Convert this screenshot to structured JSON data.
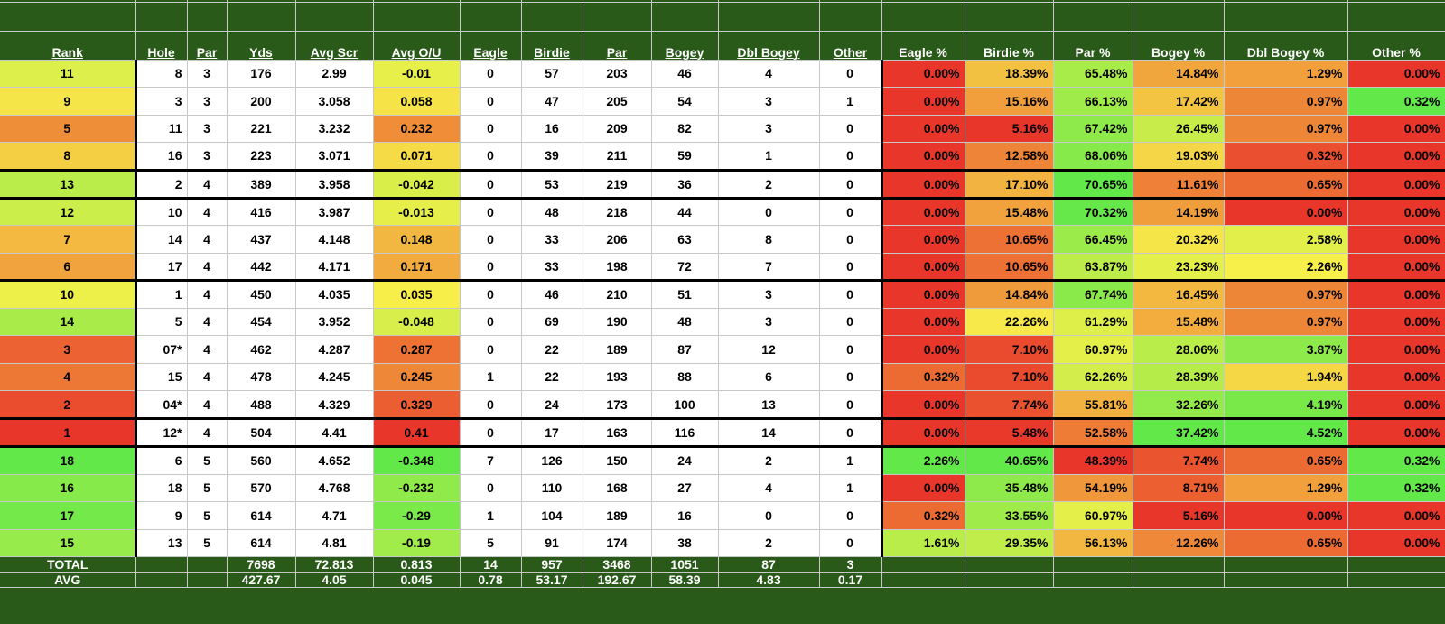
{
  "headers": {
    "rank": "Rank",
    "hole": "Hole",
    "par": "Par",
    "yds": "Yds",
    "avg_scr": "Avg Scr",
    "avg_ou": "Avg O/U",
    "eagle": "Eagle",
    "birdie": "Birdie",
    "par_count": "Par",
    "bogey": "Bogey",
    "dbl_bogey": "Dbl Bogey",
    "other": "Other",
    "eagle_pct": "Eagle %",
    "birdie_pct": "Birdie %",
    "par_pct": "Par %",
    "bogey_pct": "Bogey %",
    "dbl_bogey_pct": "Dbl Bogey %",
    "other_pct": "Other %"
  },
  "rows": [
    {
      "rank": "11",
      "hole": "8",
      "par": "3",
      "yds": "176",
      "avg_scr": "2.99",
      "avg_ou": "-0.01",
      "eagle": "0",
      "birdie": "57",
      "par_count": "203",
      "bogey": "46",
      "dbl_bogey": "4",
      "other": "0",
      "eagle_pct": "0.00%",
      "birdie_pct": "18.39%",
      "par_pct": "65.48%",
      "bogey_pct": "14.84%",
      "dbl_bogey_pct": "1.29%",
      "other_pct": "0.00%"
    },
    {
      "rank": "9",
      "hole": "3",
      "par": "3",
      "yds": "200",
      "avg_scr": "3.058",
      "avg_ou": "0.058",
      "eagle": "0",
      "birdie": "47",
      "par_count": "205",
      "bogey": "54",
      "dbl_bogey": "3",
      "other": "1",
      "eagle_pct": "0.00%",
      "birdie_pct": "15.16%",
      "par_pct": "66.13%",
      "bogey_pct": "17.42%",
      "dbl_bogey_pct": "0.97%",
      "other_pct": "0.32%"
    },
    {
      "rank": "5",
      "hole": "11",
      "par": "3",
      "yds": "221",
      "avg_scr": "3.232",
      "avg_ou": "0.232",
      "eagle": "0",
      "birdie": "16",
      "par_count": "209",
      "bogey": "82",
      "dbl_bogey": "3",
      "other": "0",
      "eagle_pct": "0.00%",
      "birdie_pct": "5.16%",
      "par_pct": "67.42%",
      "bogey_pct": "26.45%",
      "dbl_bogey_pct": "0.97%",
      "other_pct": "0.00%"
    },
    {
      "rank": "8",
      "hole": "16",
      "par": "3",
      "yds": "223",
      "avg_scr": "3.071",
      "avg_ou": "0.071",
      "eagle": "0",
      "birdie": "39",
      "par_count": "211",
      "bogey": "59",
      "dbl_bogey": "1",
      "other": "0",
      "eagle_pct": "0.00%",
      "birdie_pct": "12.58%",
      "par_pct": "68.06%",
      "bogey_pct": "19.03%",
      "dbl_bogey_pct": "0.32%",
      "other_pct": "0.00%"
    },
    {
      "rank": "13",
      "hole": "2",
      "par": "4",
      "yds": "389",
      "avg_scr": "3.958",
      "avg_ou": "-0.042",
      "eagle": "0",
      "birdie": "53",
      "par_count": "219",
      "bogey": "36",
      "dbl_bogey": "2",
      "other": "0",
      "eagle_pct": "0.00%",
      "birdie_pct": "17.10%",
      "par_pct": "70.65%",
      "bogey_pct": "11.61%",
      "dbl_bogey_pct": "0.65%",
      "other_pct": "0.00%"
    },
    {
      "rank": "12",
      "hole": "10",
      "par": "4",
      "yds": "416",
      "avg_scr": "3.987",
      "avg_ou": "-0.013",
      "eagle": "0",
      "birdie": "48",
      "par_count": "218",
      "bogey": "44",
      "dbl_bogey": "0",
      "other": "0",
      "eagle_pct": "0.00%",
      "birdie_pct": "15.48%",
      "par_pct": "70.32%",
      "bogey_pct": "14.19%",
      "dbl_bogey_pct": "0.00%",
      "other_pct": "0.00%"
    },
    {
      "rank": "7",
      "hole": "14",
      "par": "4",
      "yds": "437",
      "avg_scr": "4.148",
      "avg_ou": "0.148",
      "eagle": "0",
      "birdie": "33",
      "par_count": "206",
      "bogey": "63",
      "dbl_bogey": "8",
      "other": "0",
      "eagle_pct": "0.00%",
      "birdie_pct": "10.65%",
      "par_pct": "66.45%",
      "bogey_pct": "20.32%",
      "dbl_bogey_pct": "2.58%",
      "other_pct": "0.00%"
    },
    {
      "rank": "6",
      "hole": "17",
      "par": "4",
      "yds": "442",
      "avg_scr": "4.171",
      "avg_ou": "0.171",
      "eagle": "0",
      "birdie": "33",
      "par_count": "198",
      "bogey": "72",
      "dbl_bogey": "7",
      "other": "0",
      "eagle_pct": "0.00%",
      "birdie_pct": "10.65%",
      "par_pct": "63.87%",
      "bogey_pct": "23.23%",
      "dbl_bogey_pct": "2.26%",
      "other_pct": "0.00%"
    },
    {
      "rank": "10",
      "hole": "1",
      "par": "4",
      "yds": "450",
      "avg_scr": "4.035",
      "avg_ou": "0.035",
      "eagle": "0",
      "birdie": "46",
      "par_count": "210",
      "bogey": "51",
      "dbl_bogey": "3",
      "other": "0",
      "eagle_pct": "0.00%",
      "birdie_pct": "14.84%",
      "par_pct": "67.74%",
      "bogey_pct": "16.45%",
      "dbl_bogey_pct": "0.97%",
      "other_pct": "0.00%"
    },
    {
      "rank": "14",
      "hole": "5",
      "par": "4",
      "yds": "454",
      "avg_scr": "3.952",
      "avg_ou": "-0.048",
      "eagle": "0",
      "birdie": "69",
      "par_count": "190",
      "bogey": "48",
      "dbl_bogey": "3",
      "other": "0",
      "eagle_pct": "0.00%",
      "birdie_pct": "22.26%",
      "par_pct": "61.29%",
      "bogey_pct": "15.48%",
      "dbl_bogey_pct": "0.97%",
      "other_pct": "0.00%"
    },
    {
      "rank": "3",
      "hole": "07*",
      "par": "4",
      "yds": "462",
      "avg_scr": "4.287",
      "avg_ou": "0.287",
      "eagle": "0",
      "birdie": "22",
      "par_count": "189",
      "bogey": "87",
      "dbl_bogey": "12",
      "other": "0",
      "eagle_pct": "0.00%",
      "birdie_pct": "7.10%",
      "par_pct": "60.97%",
      "bogey_pct": "28.06%",
      "dbl_bogey_pct": "3.87%",
      "other_pct": "0.00%"
    },
    {
      "rank": "4",
      "hole": "15",
      "par": "4",
      "yds": "478",
      "avg_scr": "4.245",
      "avg_ou": "0.245",
      "eagle": "1",
      "birdie": "22",
      "par_count": "193",
      "bogey": "88",
      "dbl_bogey": "6",
      "other": "0",
      "eagle_pct": "0.32%",
      "birdie_pct": "7.10%",
      "par_pct": "62.26%",
      "bogey_pct": "28.39%",
      "dbl_bogey_pct": "1.94%",
      "other_pct": "0.00%"
    },
    {
      "rank": "2",
      "hole": "04*",
      "par": "4",
      "yds": "488",
      "avg_scr": "4.329",
      "avg_ou": "0.329",
      "eagle": "0",
      "birdie": "24",
      "par_count": "173",
      "bogey": "100",
      "dbl_bogey": "13",
      "other": "0",
      "eagle_pct": "0.00%",
      "birdie_pct": "7.74%",
      "par_pct": "55.81%",
      "bogey_pct": "32.26%",
      "dbl_bogey_pct": "4.19%",
      "other_pct": "0.00%"
    },
    {
      "rank": "1",
      "hole": "12*",
      "par": "4",
      "yds": "504",
      "avg_scr": "4.41",
      "avg_ou": "0.41",
      "eagle": "0",
      "birdie": "17",
      "par_count": "163",
      "bogey": "116",
      "dbl_bogey": "14",
      "other": "0",
      "eagle_pct": "0.00%",
      "birdie_pct": "5.48%",
      "par_pct": "52.58%",
      "bogey_pct": "37.42%",
      "dbl_bogey_pct": "4.52%",
      "other_pct": "0.00%"
    },
    {
      "rank": "18",
      "hole": "6",
      "par": "5",
      "yds": "560",
      "avg_scr": "4.652",
      "avg_ou": "-0.348",
      "eagle": "7",
      "birdie": "126",
      "par_count": "150",
      "bogey": "24",
      "dbl_bogey": "2",
      "other": "1",
      "eagle_pct": "2.26%",
      "birdie_pct": "40.65%",
      "par_pct": "48.39%",
      "bogey_pct": "7.74%",
      "dbl_bogey_pct": "0.65%",
      "other_pct": "0.32%"
    },
    {
      "rank": "16",
      "hole": "18",
      "par": "5",
      "yds": "570",
      "avg_scr": "4.768",
      "avg_ou": "-0.232",
      "eagle": "0",
      "birdie": "110",
      "par_count": "168",
      "bogey": "27",
      "dbl_bogey": "4",
      "other": "1",
      "eagle_pct": "0.00%",
      "birdie_pct": "35.48%",
      "par_pct": "54.19%",
      "bogey_pct": "8.71%",
      "dbl_bogey_pct": "1.29%",
      "other_pct": "0.32%"
    },
    {
      "rank": "17",
      "hole": "9",
      "par": "5",
      "yds": "614",
      "avg_scr": "4.71",
      "avg_ou": "-0.29",
      "eagle": "1",
      "birdie": "104",
      "par_count": "189",
      "bogey": "16",
      "dbl_bogey": "0",
      "other": "0",
      "eagle_pct": "0.32%",
      "birdie_pct": "33.55%",
      "par_pct": "60.97%",
      "bogey_pct": "5.16%",
      "dbl_bogey_pct": "0.00%",
      "other_pct": "0.00%"
    },
    {
      "rank": "15",
      "hole": "13",
      "par": "5",
      "yds": "614",
      "avg_scr": "4.81",
      "avg_ou": "-0.19",
      "eagle": "5",
      "birdie": "91",
      "par_count": "174",
      "bogey": "38",
      "dbl_bogey": "2",
      "other": "0",
      "eagle_pct": "1.61%",
      "birdie_pct": "29.35%",
      "par_pct": "56.13%",
      "bogey_pct": "12.26%",
      "dbl_bogey_pct": "0.65%",
      "other_pct": "0.00%"
    }
  ],
  "footer": {
    "total": {
      "label": "TOTAL",
      "yds": "7698",
      "avg_scr": "72.813",
      "avg_ou": "0.813",
      "eagle": "14",
      "birdie": "957",
      "par_count": "3468",
      "bogey": "1051",
      "dbl_bogey": "87",
      "other": "3"
    },
    "avg": {
      "label": "AVG",
      "yds": "427.67",
      "avg_scr": "4.05",
      "avg_ou": "0.045",
      "eagle": "0.78",
      "birdie": "53.17",
      "par_count": "192.67",
      "bogey": "58.39",
      "dbl_bogey": "4.83",
      "other": "0.17"
    }
  },
  "colors": {
    "header_bg": "#2a5a1a",
    "heat_good": "#63e84a",
    "heat_mid": "#f7f04a",
    "heat_bad": "#e8362a"
  }
}
